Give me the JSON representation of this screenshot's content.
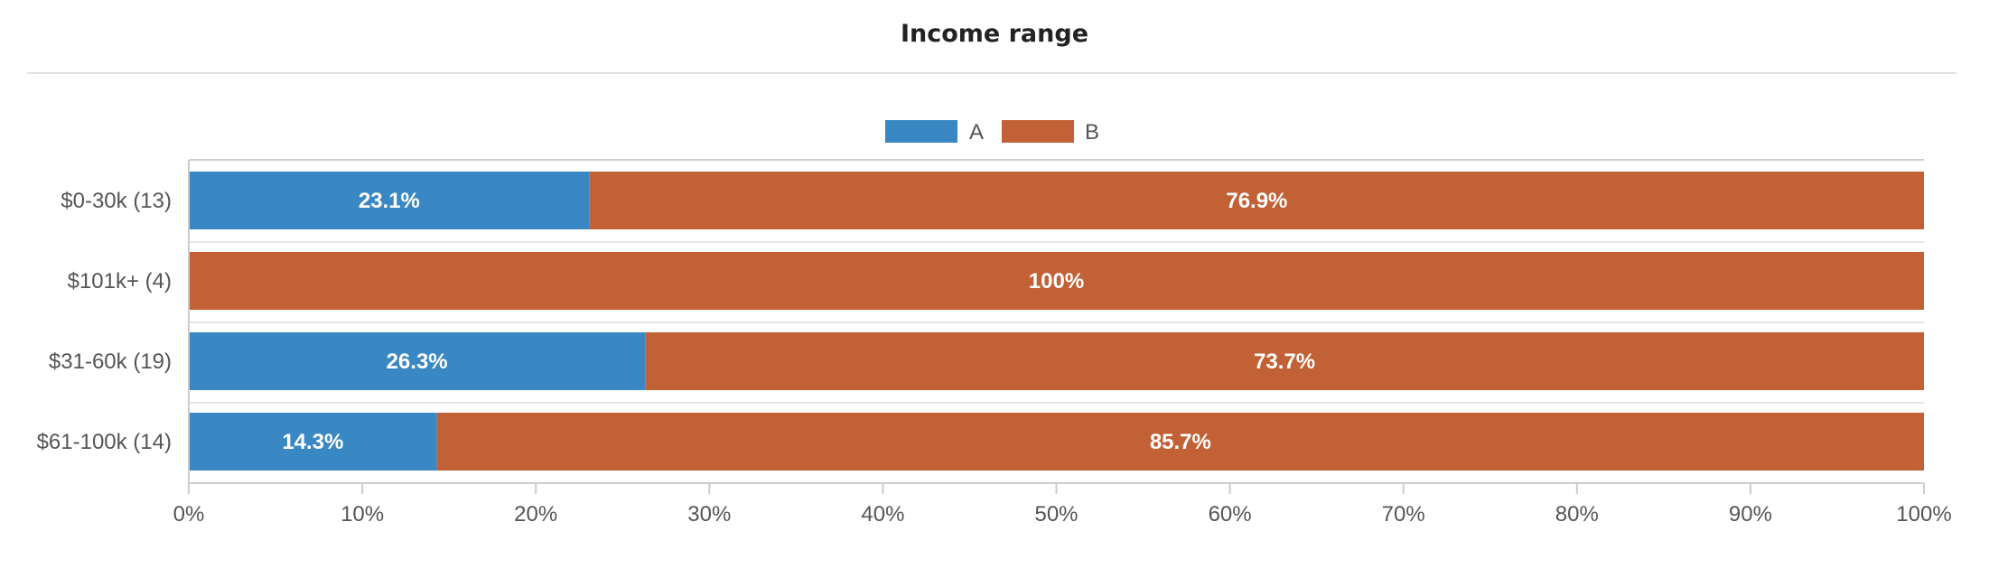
{
  "chart_data": {
    "type": "bar",
    "orientation": "horizontal",
    "stacked": true,
    "title": "Income range",
    "categories": [
      "$0-30k (13)",
      "$101k+ (4)",
      "$31-60k (19)",
      "$61-100k (14)"
    ],
    "series": [
      {
        "name": "A",
        "color": "#3a88c3",
        "values": [
          23.1,
          0,
          26.3,
          14.3
        ],
        "labels": [
          "23.1%",
          "",
          "26.3%",
          "14.3%"
        ]
      },
      {
        "name": "B",
        "color": "#c26135",
        "values": [
          76.9,
          100,
          73.7,
          85.7
        ],
        "labels": [
          "76.9%",
          "100%",
          "73.7%",
          "85.7%"
        ]
      }
    ],
    "xlim": [
      0,
      100
    ],
    "xticks": [
      0,
      10,
      20,
      30,
      40,
      50,
      60,
      70,
      80,
      90,
      100
    ],
    "xtick_labels": [
      "0%",
      "10%",
      "20%",
      "30%",
      "40%",
      "50%",
      "60%",
      "70%",
      "80%",
      "90%",
      "100%"
    ],
    "legend_position": "top-center",
    "grid": false
  }
}
